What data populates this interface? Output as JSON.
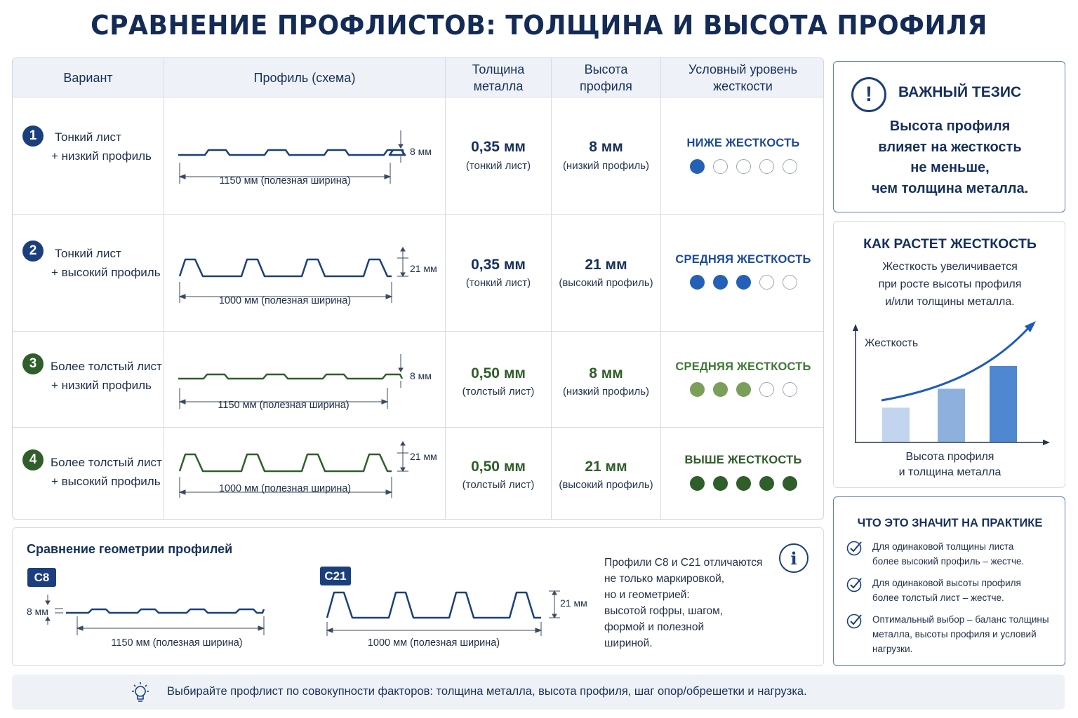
{
  "title": "СРАВНЕНИЕ ПРОФЛИСТОВ: ТОЛЩИНА И ВЫСОТА ПРОФИЛЯ",
  "table": {
    "headers": [
      "Вариант",
      "Профиль (схема)",
      "Толщина\nметалла",
      "Высота\nпрофиля",
      "Условный уровень\nжесткости"
    ],
    "rows": [
      {
        "num": "1",
        "line1": "Тонкий лист",
        "line2": "+ низкий профиль",
        "height_label": "8 мм",
        "width_label": "1150 мм (полезная ширина)",
        "thickness": "0,35 мм",
        "thickness_note": "(тонкий лист)",
        "profile_height": "8 мм",
        "height_note": "(низкий профиль)",
        "stiffness": "НИЖЕ ЖЕСТКОСТЬ",
        "rating": 1,
        "color": "#1b4a96",
        "profile_type": "low"
      },
      {
        "num": "2",
        "line1": "Тонкий лист",
        "line2": "+ высокий профиль",
        "height_label": "21 мм",
        "width_label": "1000 мм (полезная ширина)",
        "thickness": "0,35 мм",
        "thickness_note": "(тонкий лист)",
        "profile_height": "21 мм",
        "height_note": "(высокий профиль)",
        "stiffness": "СРЕДНЯЯ ЖЕСТКОСТЬ",
        "rating": 3,
        "color": "#1b4a96",
        "profile_type": "high"
      },
      {
        "num": "3",
        "line1": "Более толстый лист",
        "line2": "+ низкий профиль",
        "height_label": "8 мм",
        "width_label": "1150 мм (полезная ширина)",
        "thickness": "0,50 мм",
        "thickness_note": "(толстый лист)",
        "profile_height": "8 мм",
        "height_note": "(низкий профиль)",
        "stiffness": "СРЕДНЯЯ ЖЕСТКОСТЬ",
        "rating": 3,
        "color": "#2f5e2a",
        "dot_color": "#7a9f5a",
        "profile_type": "low"
      },
      {
        "num": "4",
        "line1": "Более толстый лист",
        "line2": "+ высокий профиль",
        "height_label": "21 мм",
        "width_label": "1000 мм (полезная ширина)",
        "thickness": "0,50 мм",
        "thickness_note": "(толстый лист)",
        "profile_height": "21 мм",
        "height_note": "(высокий профиль)",
        "stiffness": "ВЫШЕ ЖЕСТКОСТЬ",
        "rating": 5,
        "color": "#2f5e2a",
        "dot_color": "#2f5e2a",
        "profile_type": "high"
      }
    ]
  },
  "geometry": {
    "title": "Сравнение геометрии профилей",
    "c8": {
      "badge": "C8",
      "height": "8 мм",
      "width": "1150 мм (полезная ширина)"
    },
    "c21": {
      "badge": "C21",
      "height": "21 мм",
      "width": "1000 мм (полезная ширина)"
    },
    "note": "Профили С8 и С21 отличаются\nне только маркировкой,\nно и геометрией:\nвысотой гофры, шагом,\nформой и полезной\nшириной."
  },
  "thesis": {
    "title": "ВАЖНЫЙ ТЕЗИС",
    "text": "Высота профиля\nвлияет на жесткость\nне меньше,\nчем толщина металла."
  },
  "growth": {
    "title": "КАК РАСТЕТ ЖЕСТКОСТЬ",
    "text": "Жесткость увеличивается\nпри росте высоты профиля\nи/или толщины металла.",
    "y_label": "Жесткость",
    "x_label": "Высота профиля\nи толщина металла",
    "bars": [
      0.45,
      0.7,
      1.0
    ],
    "bar_colors": [
      "#c3d5ee",
      "#8eb0dd",
      "#4f87d0"
    ]
  },
  "practice": {
    "title": "ЧТО ЭТО ЗНАЧИТ НА ПРАКТИКЕ",
    "items": [
      "Для одинаковой толщины листа\nболее высокий профиль – жестче.",
      "Для одинаковой высоты профиля\nболее толстый лист – жестче.",
      "Оптимальный выбор – баланс толщины\nметалла, высоты профиля и условий\nнагрузки."
    ]
  },
  "footer": "Выбирайте профлист по совокупности факторов: толщина металла, высота профиля, шаг опор/обрешетки и нагрузка."
}
